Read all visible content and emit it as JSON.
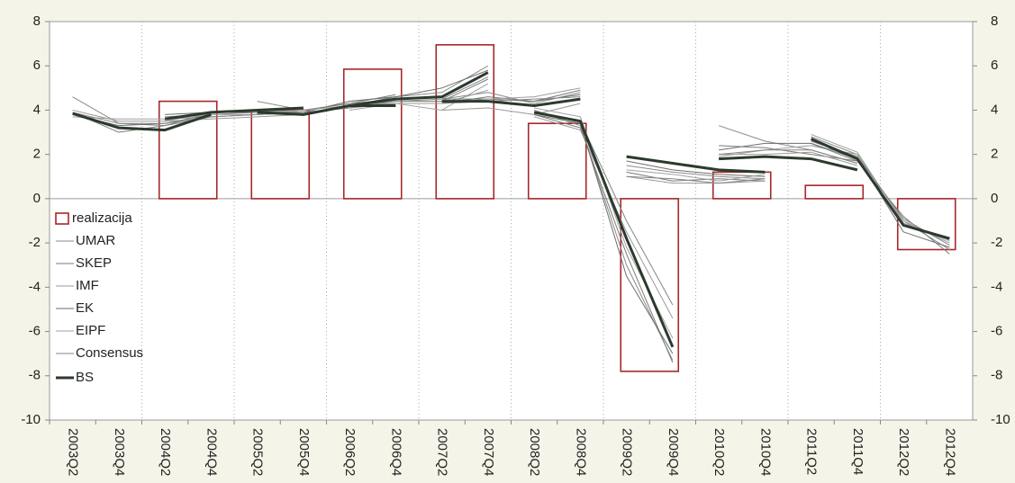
{
  "chart_data": {
    "type": "combo",
    "categories": [
      "2003Q2",
      "2003Q4",
      "2004Q2",
      "2004Q4",
      "2005Q2",
      "2005Q4",
      "2006Q2",
      "2006Q4",
      "2007Q2",
      "2007Q4",
      "2008Q2",
      "2008Q4",
      "2009Q2",
      "2009Q4",
      "2010Q2",
      "2010Q4",
      "2011Q2",
      "2011Q4",
      "2012Q2",
      "2012Q4"
    ],
    "ylim": [
      -10,
      8
    ],
    "yticks": [
      -10,
      -8,
      -6,
      -4,
      -2,
      0,
      2,
      4,
      6,
      8
    ],
    "xgrid": true,
    "legend": "left",
    "bars": {
      "name": "realizacija",
      "color": "#a8262c",
      "x": [
        "2004Q4",
        "2005Q4",
        "2006Q4",
        "2007Q4",
        "2008Q4",
        "2009Q4",
        "2010Q4",
        "2011Q4",
        "2012Q4"
      ],
      "values": [
        4.4,
        4.0,
        5.85,
        6.95,
        3.4,
        -7.8,
        1.2,
        0.6,
        -2.3
      ]
    },
    "vintage_x": [
      [
        "2003Q2",
        "2003Q4",
        "2004Q2",
        "2004Q4"
      ],
      [
        "2004Q2",
        "2004Q4",
        "2005Q2",
        "2005Q4"
      ],
      [
        "2005Q2",
        "2005Q4",
        "2006Q2",
        "2006Q4"
      ],
      [
        "2006Q2",
        "2006Q4",
        "2007Q2",
        "2007Q4"
      ],
      [
        "2007Q2",
        "2007Q4",
        "2008Q2",
        "2008Q4"
      ],
      [
        "2008Q2",
        "2008Q4",
        "2009Q2",
        "2009Q4"
      ],
      [
        "2009Q2",
        "2009Q4",
        "2010Q2",
        "2010Q4"
      ],
      [
        "2010Q2",
        "2010Q4",
        "2011Q2",
        "2011Q4"
      ],
      [
        "2011Q2",
        "2011Q4",
        "2012Q2",
        "2012Q4"
      ]
    ],
    "series": [
      {
        "name": "UMAR",
        "color": "#8a8a8a",
        "width": 1,
        "values": [
          [
            4.6,
            3.4,
            3.3,
            3.9
          ],
          [
            3.7,
            3.8,
            3.9,
            4.0
          ],
          [
            4.4,
            4.0,
            4.3,
            4.5
          ],
          [
            4.4,
            4.6,
            4.8,
            6.0
          ],
          [
            4.5,
            4.8,
            4.3,
            4.8
          ],
          [
            4.0,
            3.3,
            -3.0,
            -7.3
          ],
          [
            1.5,
            1.2,
            1.0,
            0.9
          ],
          [
            3.3,
            2.6,
            2.2,
            1.6
          ],
          [
            2.8,
            2.0,
            -1.0,
            -2.3
          ]
        ]
      },
      {
        "name": "SKEP",
        "color": "#7a7a7a",
        "width": 1,
        "values": [
          [
            3.9,
            3.0,
            3.3,
            3.7
          ],
          [
            3.4,
            3.7,
            3.8,
            3.9
          ],
          [
            3.8,
            4.0,
            4.3,
            4.7
          ],
          [
            4.1,
            4.4,
            4.4,
            5.4
          ],
          [
            4.3,
            4.6,
            4.4,
            4.9
          ],
          [
            3.8,
            3.2,
            -2.5,
            -7.4
          ],
          [
            1.2,
            0.8,
            0.9,
            0.8
          ],
          [
            2.4,
            2.3,
            2.0,
            1.7
          ],
          [
            2.5,
            1.7,
            -0.8,
            -2.5
          ]
        ]
      },
      {
        "name": "IMF",
        "color": "#999999",
        "width": 1,
        "values": [
          [
            4.0,
            3.5,
            3.5,
            3.9
          ],
          [
            3.5,
            3.6,
            3.7,
            3.8
          ],
          [
            4.0,
            3.9,
            4.1,
            4.4
          ],
          [
            4.2,
            4.3,
            4.3,
            4.9
          ],
          [
            4.0,
            4.1,
            3.8,
            4.3
          ],
          [
            3.7,
            3.1,
            -1.5,
            -5.4
          ],
          [
            1.0,
            0.7,
            0.7,
            0.8
          ],
          [
            2.0,
            2.0,
            2.1,
            1.5
          ],
          [
            2.4,
            2.0,
            -1.0,
            -2.0
          ]
        ]
      },
      {
        "name": "EK",
        "color": "#6e6e6e",
        "width": 1,
        "values": [
          [
            3.8,
            3.3,
            3.4,
            3.8
          ],
          [
            3.8,
            3.9,
            3.9,
            4.1
          ],
          [
            3.8,
            3.9,
            4.4,
            4.6
          ],
          [
            4.2,
            4.6,
            5.0,
            5.8
          ],
          [
            4.5,
            4.5,
            4.4,
            4.7
          ],
          [
            3.8,
            3.4,
            -3.5,
            -7.0
          ],
          [
            1.7,
            1.3,
            1.1,
            1.0
          ],
          [
            2.2,
            2.5,
            2.5,
            1.8
          ],
          [
            2.6,
            1.9,
            -1.5,
            -2.2
          ]
        ]
      },
      {
        "name": "EIPF",
        "color": "#a0a0a0",
        "width": 1,
        "values": [
          [
            3.7,
            3.6,
            3.6,
            3.9
          ],
          [
            3.6,
            3.8,
            3.8,
            4.0
          ],
          [
            3.9,
            4.0,
            4.2,
            4.4
          ],
          [
            4.0,
            4.3,
            4.0,
            5.2
          ],
          [
            4.3,
            4.5,
            4.6,
            5.0
          ],
          [
            4.1,
            3.7,
            -2.2,
            -6.3
          ],
          [
            1.3,
            1.1,
            0.8,
            1.1
          ],
          [
            1.9,
            2.2,
            2.4,
            1.9
          ],
          [
            2.9,
            2.1,
            -1.1,
            -1.9
          ]
        ]
      },
      {
        "name": "Consensus",
        "color": "#858585",
        "width": 1,
        "values": [
          [
            3.9,
            3.4,
            3.4,
            3.8
          ],
          [
            3.6,
            3.7,
            3.8,
            3.9
          ],
          [
            3.9,
            3.9,
            4.1,
            4.3
          ],
          [
            4.1,
            4.4,
            4.5,
            5.5
          ],
          [
            4.3,
            4.4,
            4.5,
            4.6
          ],
          [
            3.9,
            3.5,
            -1.0,
            -4.8
          ],
          [
            1.0,
            0.9,
            0.7,
            0.9
          ],
          [
            2.0,
            2.2,
            2.2,
            1.6
          ],
          [
            2.6,
            1.9,
            -0.9,
            -2.1
          ]
        ]
      },
      {
        "name": "BS",
        "color": "#2b3a2c",
        "width": 3,
        "values": [
          [
            3.85,
            3.2,
            3.1,
            3.8
          ],
          [
            3.6,
            3.9,
            4.0,
            4.1
          ],
          [
            3.9,
            3.8,
            4.2,
            4.2
          ],
          [
            4.2,
            4.5,
            4.6,
            5.7
          ],
          [
            4.4,
            4.4,
            4.2,
            4.5
          ],
          [
            3.9,
            3.5,
            -1.8,
            -6.7
          ],
          [
            1.9,
            1.6,
            1.3,
            1.2
          ],
          [
            1.8,
            1.9,
            1.8,
            1.3
          ],
          [
            2.7,
            1.8,
            -1.2,
            -1.8
          ]
        ]
      }
    ]
  }
}
